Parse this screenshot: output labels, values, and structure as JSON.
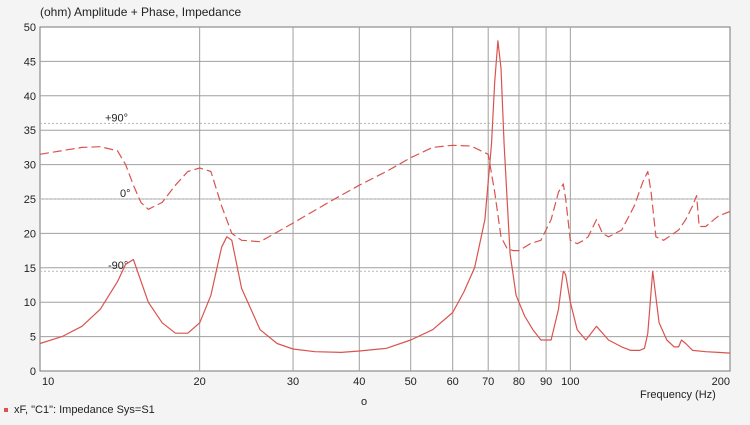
{
  "chart_data": {
    "type": "line",
    "title": "(ohm)  Amplitude + Phase, Impedance",
    "xlabel": "Frequency  (Hz)",
    "xscale": "log",
    "xlim": [
      10,
      200
    ],
    "ylim": [
      0,
      50
    ],
    "x_ticks": [
      10,
      20,
      30,
      40,
      50,
      60,
      70,
      80,
      90,
      100,
      200
    ],
    "x_tick_labels": [
      "10",
      "20",
      "30",
      "40",
      "50",
      "60",
      "70",
      "80",
      "90",
      "100",
      "200"
    ],
    "y_ticks": [
      0,
      5,
      10,
      15,
      20,
      25,
      30,
      35,
      40,
      45,
      50
    ],
    "grid": true,
    "colors": {
      "curve": "#d9534f",
      "grid": "#a0a0a0",
      "minor_grid": "#b5b5b5"
    },
    "phase_labels": [
      {
        "text": "+90°",
        "y": 36
      },
      {
        "text": "0°",
        "y": 25
      },
      {
        "text": "-90°",
        "y": 14.5
      }
    ],
    "series": [
      {
        "name": "impedance",
        "style": "solid",
        "x": [
          10,
          11,
          12,
          13,
          14,
          14.5,
          15,
          16,
          17,
          18,
          19,
          20,
          21,
          22,
          22.5,
          23,
          24,
          26,
          28,
          30,
          33,
          37,
          40,
          45,
          50,
          55,
          60,
          63,
          66,
          69,
          71,
          72,
          73,
          74,
          75,
          77,
          79,
          82,
          85,
          88,
          92,
          95,
          97,
          98,
          100,
          103,
          107,
          112,
          118,
          125,
          130,
          135,
          138,
          140,
          143,
          147,
          152,
          157,
          160,
          162,
          165,
          170,
          180,
          190,
          200
        ],
        "y": [
          4,
          5,
          6.5,
          9,
          13,
          15.5,
          16.2,
          10,
          7,
          5.5,
          5.5,
          7,
          11,
          18,
          19.5,
          19,
          12,
          6,
          4,
          3.2,
          2.8,
          2.7,
          2.9,
          3.3,
          4.5,
          6,
          8.5,
          11.5,
          15,
          22,
          33,
          42,
          48,
          44,
          33,
          17,
          11,
          8,
          6,
          4.5,
          4.5,
          9,
          14.5,
          14,
          10,
          6,
          4.5,
          6.5,
          4.5,
          3.5,
          3,
          3,
          3.3,
          5.5,
          14.5,
          7,
          4.5,
          3.5,
          3.5,
          4.5,
          4,
          3,
          2.8,
          2.7,
          2.6
        ]
      },
      {
        "name": "phase",
        "style": "dashed",
        "x": [
          10,
          12,
          13,
          14,
          14.5,
          15,
          15.5,
          16,
          17,
          18,
          19,
          20,
          21,
          22,
          23,
          24,
          26,
          30,
          35,
          40,
          45,
          50,
          55,
          60,
          65,
          70,
          72,
          74,
          76,
          78,
          80,
          84,
          88,
          92,
          95,
          97,
          98,
          100,
          103,
          106,
          108,
          112,
          115,
          118,
          125,
          132,
          137,
          140,
          142,
          145,
          150,
          160,
          165,
          170,
          173,
          175,
          180,
          190,
          200
        ],
        "y": [
          31.5,
          32.5,
          32.6,
          32,
          30,
          27,
          24.5,
          23.5,
          24.5,
          27,
          29,
          29.5,
          29,
          24,
          20,
          19,
          18.8,
          21.5,
          24.5,
          27,
          29,
          31,
          32.5,
          32.8,
          32.7,
          31.5,
          26,
          19.5,
          17.8,
          17.5,
          17.5,
          18.5,
          19,
          22,
          26,
          27.2,
          25,
          19,
          18.5,
          19,
          19.5,
          22,
          20,
          19.5,
          20.5,
          24,
          27.5,
          29,
          26,
          19.5,
          19,
          20.5,
          22,
          24,
          25.5,
          21,
          21,
          22.5,
          23.2
        ]
      }
    ]
  },
  "legend": {
    "text": "xF, \"C1\": Impedance Sys=S1"
  },
  "footnote": "o"
}
